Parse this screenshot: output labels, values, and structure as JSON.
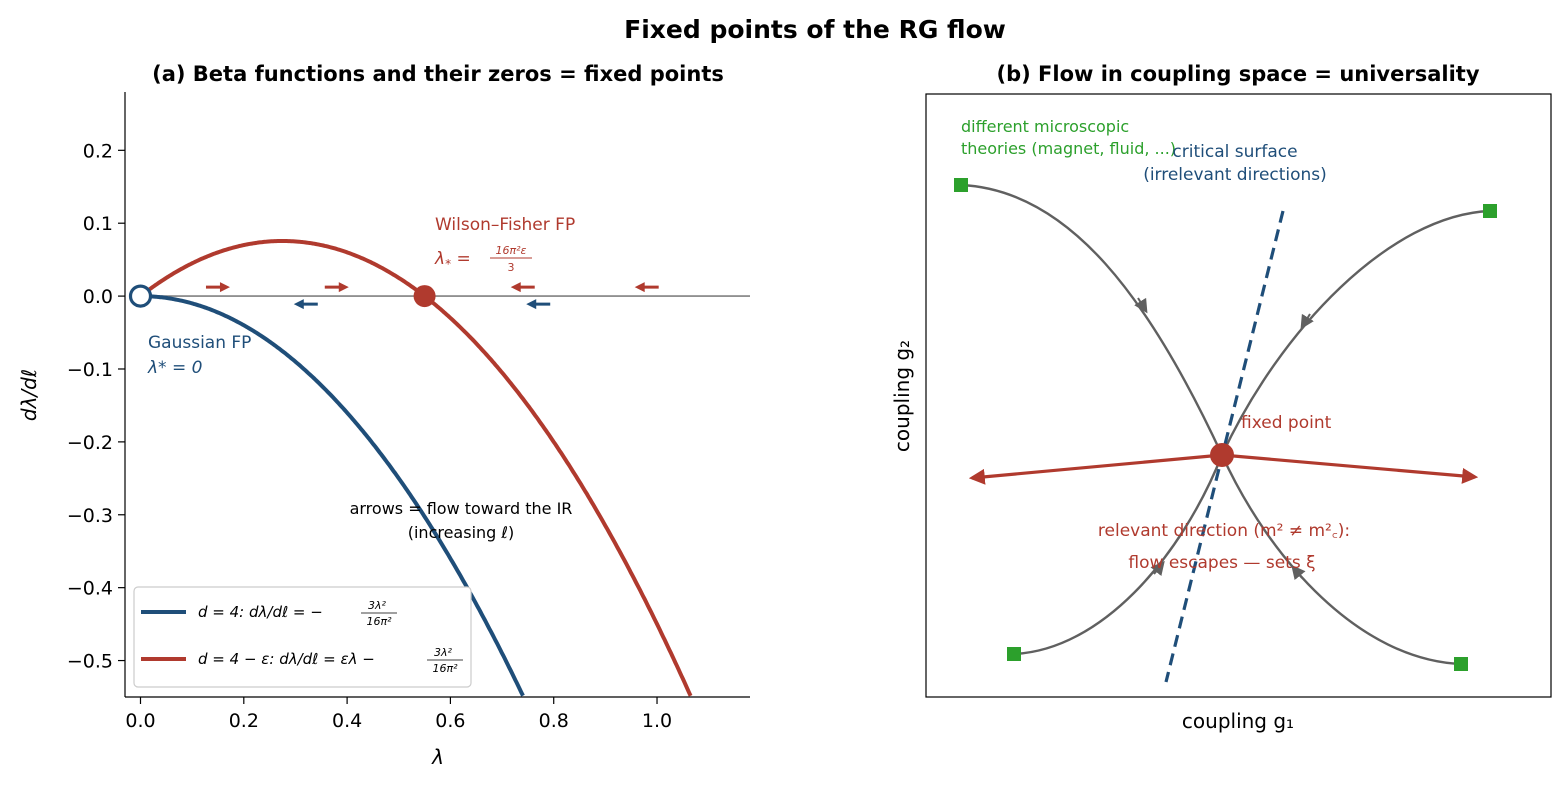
{
  "figure": {
    "title": "Fixed points of the RG flow",
    "colors": {
      "blue": "#1f4e79",
      "red": "#b03a2e",
      "green": "#2ca02c",
      "gray": "#606060",
      "axis": "#808080"
    }
  },
  "chart_data": [
    {
      "type": "line",
      "title": "(a) Beta functions and their zeros = fixed points",
      "xlabel": "λ",
      "ylabel": "dλ/dℓ",
      "xlim": [
        -0.03,
        1.18
      ],
      "ylim": [
        -0.55,
        0.28
      ],
      "xticks": [
        "0.0",
        "0.2",
        "0.4",
        "0.6",
        "0.8",
        "1.0"
      ],
      "yticks": [
        "0.2",
        "0.1",
        "0.0",
        "−0.1",
        "−0.2",
        "−0.3",
        "−0.4",
        "−0.5"
      ],
      "series": [
        {
          "name": "d = 4:  dλ/dℓ = −3λ²/16π²",
          "legend_prefix": "d = 4:  dλ/dℓ = −",
          "legend_num": "3λ²",
          "legend_den": "16π²",
          "color": "#1f4e79",
          "epsilon": 0,
          "coef": 1.0,
          "x_domain": [
            0,
            1.18
          ]
        },
        {
          "name": "d = 4 − ε:  dλ/dℓ = ελ − 3λ²/16π²",
          "legend_prefix": "d = 4 − ε:  dλ/dℓ = ελ −",
          "legend_num": "3λ²",
          "legend_den": "16π²",
          "color": "#b03a2e",
          "epsilon": 0.55,
          "coef": 1.0,
          "x_domain": [
            0,
            1.18
          ]
        }
      ],
      "fixed_points": [
        {
          "x": 0.0,
          "y": 0.0,
          "style": "open",
          "color": "#1f4e79"
        },
        {
          "x": 0.55,
          "y": 0.0,
          "style": "filled",
          "color": "#b03a2e"
        }
      ],
      "arrows": [
        {
          "x": 0.15,
          "dir": "right",
          "series": "red"
        },
        {
          "x": 0.38,
          "dir": "right",
          "series": "red"
        },
        {
          "x": 0.74,
          "dir": "left",
          "series": "red"
        },
        {
          "x": 0.98,
          "dir": "left",
          "series": "red"
        },
        {
          "x": 0.32,
          "dir": "left",
          "series": "blue"
        },
        {
          "x": 0.77,
          "dir": "left",
          "series": "blue"
        }
      ],
      "annotations": {
        "wf_line1": "Wilson–Fisher FP",
        "wf_line2_prefix": "λ",
        "wf_line2_sub": "*",
        "wf_line2_eq": " = ",
        "wf_num": "16π²ε",
        "wf_den": "3",
        "gauss_line1": "Gaussian FP",
        "gauss_line2": "λ* = 0",
        "flow_line1": "arrows = flow toward the IR",
        "flow_line2": "(increasing ℓ)"
      },
      "legend_position": "lower-left"
    },
    {
      "type": "diagram",
      "title": "(b) Flow in coupling space = universality",
      "xlabel": "coupling g₁",
      "ylabel": "coupling g₂",
      "annotations": {
        "micro_line1": "different microscopic",
        "micro_line2": "theories (magnet, fluid, ...)",
        "critical_line1": "critical surface",
        "critical_line2": "(irrelevant directions)",
        "fixed_point": "fixed point",
        "relevant_line1": "relevant direction (m² ≠ m²꜀):",
        "relevant_line2": "flow escapes — sets ξ"
      }
    }
  ]
}
